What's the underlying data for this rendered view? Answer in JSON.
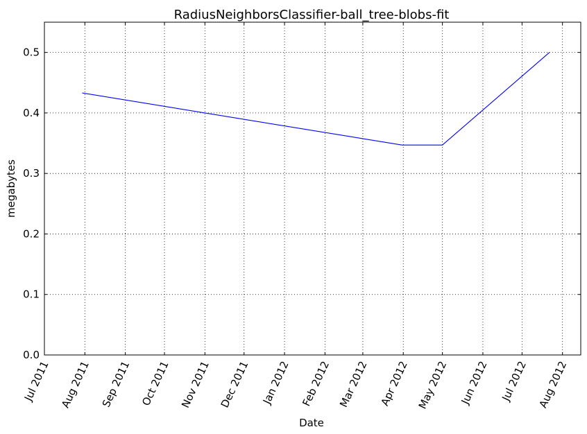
{
  "chart_data": {
    "type": "line",
    "title": "RadiusNeighborsClassifier-ball_tree-blobs-fit",
    "xlabel": "Date",
    "ylabel": "megabytes",
    "x_ticks": [
      "Jul 2011",
      "Aug 2011",
      "Sep 2011",
      "Oct 2011",
      "Nov 2011",
      "Dec 2011",
      "Jan 2012",
      "Feb 2012",
      "Mar 2012",
      "Apr 2012",
      "May 2012",
      "Jun 2012",
      "Jul 2012",
      "Aug 2012"
    ],
    "y_ticks": [
      "0.0",
      "0.1",
      "0.2",
      "0.3",
      "0.4",
      "0.5"
    ],
    "xlim": [
      "2011-07-01",
      "2012-08-15"
    ],
    "ylim": [
      0.0,
      0.55
    ],
    "grid": true,
    "series": [
      {
        "color": "#0000ff",
        "x": [
          "2011-07-30",
          "2012-03-31",
          "2012-05-01",
          "2012-07-22"
        ],
        "y": [
          0.433,
          0.347,
          0.347,
          0.5
        ]
      }
    ]
  }
}
